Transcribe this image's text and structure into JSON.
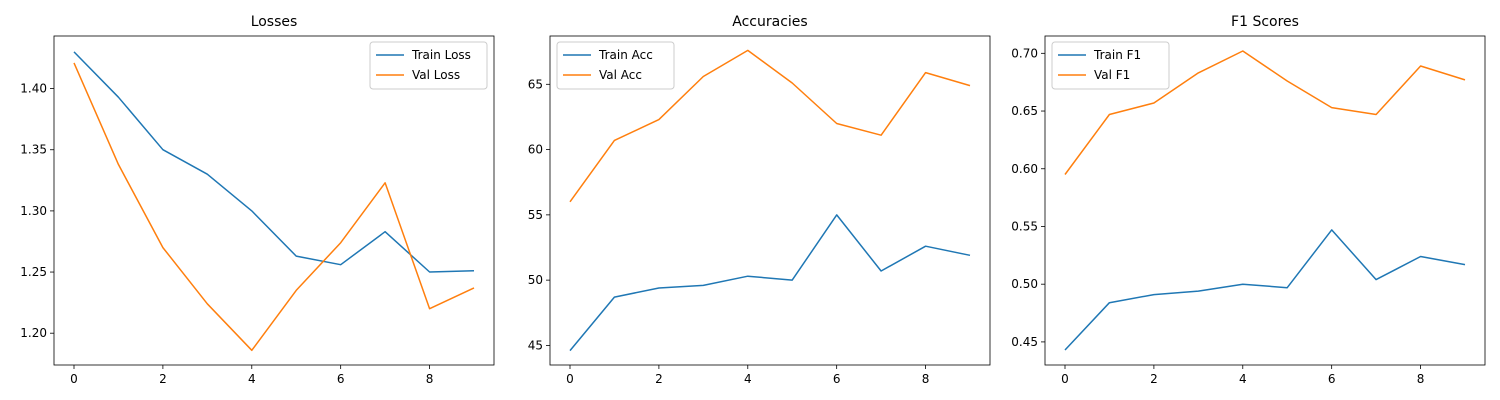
{
  "colors": {
    "train": "#1f77b4",
    "val": "#ff7f0e",
    "axis": "#000000",
    "legend_border": "#cccccc"
  },
  "chart_data": [
    {
      "type": "line",
      "title": "Losses",
      "x": [
        0,
        1,
        2,
        3,
        4,
        5,
        6,
        7,
        8,
        9
      ],
      "xlim": [
        -0.45,
        9.45
      ],
      "ylim": [
        1.174,
        1.443
      ],
      "xticks": [
        0,
        2,
        4,
        6,
        8
      ],
      "yticks": [
        1.2,
        1.25,
        1.3,
        1.35,
        1.4
      ],
      "ytick_labels": [
        "1.20",
        "1.25",
        "1.30",
        "1.35",
        "1.40"
      ],
      "legend": "top-right",
      "grid": false,
      "series": [
        {
          "name": "Train Loss",
          "color": "#1f77b4",
          "values": [
            1.43,
            1.393,
            1.35,
            1.33,
            1.3,
            1.263,
            1.256,
            1.283,
            1.25,
            1.251
          ]
        },
        {
          "name": "Val Loss",
          "color": "#ff7f0e",
          "values": [
            1.421,
            1.338,
            1.27,
            1.224,
            1.186,
            1.235,
            1.274,
            1.323,
            1.22,
            1.237
          ]
        }
      ]
    },
    {
      "type": "line",
      "title": "Accuracies",
      "x": [
        0,
        1,
        2,
        3,
        4,
        5,
        6,
        7,
        8,
        9
      ],
      "xlim": [
        -0.45,
        9.45
      ],
      "ylim": [
        43.5,
        68.7
      ],
      "xticks": [
        0,
        2,
        4,
        6,
        8
      ],
      "yticks": [
        45,
        50,
        55,
        60,
        65
      ],
      "ytick_labels": [
        "45",
        "50",
        "55",
        "60",
        "65"
      ],
      "legend": "top-left",
      "grid": false,
      "series": [
        {
          "name": "Train Acc",
          "color": "#1f77b4",
          "values": [
            44.6,
            48.7,
            49.4,
            49.6,
            50.3,
            50.0,
            55.0,
            50.7,
            52.6,
            51.9
          ]
        },
        {
          "name": "Val Acc",
          "color": "#ff7f0e",
          "values": [
            56.0,
            60.7,
            62.3,
            65.6,
            67.6,
            65.1,
            62.0,
            61.1,
            65.9,
            64.9
          ]
        }
      ]
    },
    {
      "type": "line",
      "title": "F1 Scores",
      "x": [
        0,
        1,
        2,
        3,
        4,
        5,
        6,
        7,
        8,
        9
      ],
      "xlim": [
        -0.45,
        9.45
      ],
      "ylim": [
        0.43,
        0.715
      ],
      "xticks": [
        0,
        2,
        4,
        6,
        8
      ],
      "yticks": [
        0.45,
        0.5,
        0.55,
        0.6,
        0.65,
        0.7
      ],
      "ytick_labels": [
        "0.45",
        "0.50",
        "0.55",
        "0.60",
        "0.65",
        "0.70"
      ],
      "legend": "top-left",
      "grid": false,
      "series": [
        {
          "name": "Train F1",
          "color": "#1f77b4",
          "values": [
            0.443,
            0.484,
            0.491,
            0.494,
            0.5,
            0.497,
            0.547,
            0.504,
            0.524,
            0.517
          ]
        },
        {
          "name": "Val F1",
          "color": "#ff7f0e",
          "values": [
            0.595,
            0.647,
            0.657,
            0.683,
            0.702,
            0.676,
            0.653,
            0.647,
            0.689,
            0.677
          ]
        }
      ]
    }
  ]
}
